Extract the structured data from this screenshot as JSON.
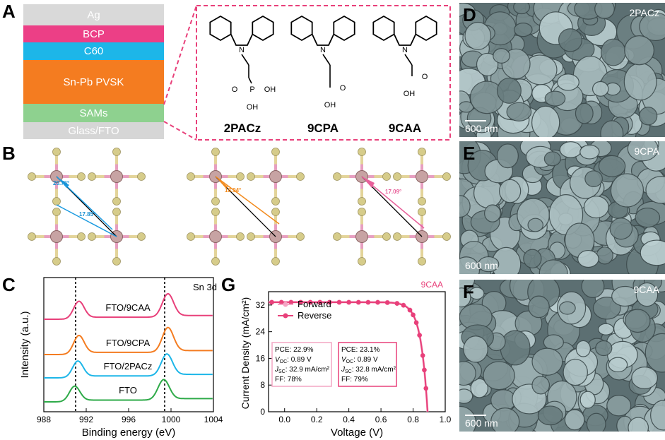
{
  "panel_labels": {
    "a": "A",
    "b": "B",
    "c": "C",
    "d": "D",
    "e": "E",
    "f": "F",
    "g": "G"
  },
  "stack": {
    "layers": [
      {
        "label": "Ag",
        "color": "#d9d9d9"
      },
      {
        "label": "BCP",
        "color": "#ec3f86"
      },
      {
        "label": "C60",
        "color": "#1db6e8"
      },
      {
        "label": "Sn-Pb PVSK",
        "color": "#f47c20"
      },
      {
        "label": "SAMs",
        "color": "#8ed18f"
      },
      {
        "label": "Glass/FTO",
        "color": "#d6d6d6"
      }
    ]
  },
  "molecules": {
    "names": [
      "2PACz",
      "9CPA",
      "9CAA"
    ],
    "atoms": {
      "N": "N",
      "P": "P",
      "O": "O",
      "OH": "OH"
    }
  },
  "angles": {
    "a1": "20.76°",
    "a2": "17.85°",
    "b1": "18.94°",
    "c1": "17.09°"
  },
  "sem": [
    {
      "label": "2PACz",
      "scale": "600 nm"
    },
    {
      "label": "9CPA",
      "scale": "600 nm"
    },
    {
      "label": "9CAA",
      "scale": "600 nm"
    }
  ],
  "chart_data": [
    {
      "type": "line",
      "xlabel": "Binding energy (eV)",
      "ylabel": "Intensity (a.u.)",
      "xlim": [
        988,
        1004
      ],
      "xticks": [
        988,
        992,
        996,
        1000,
        1004
      ],
      "annotation": "Sn 3d",
      "peak_markers": [
        991,
        999.4
      ],
      "series": [
        {
          "name": "FTO/9CAA",
          "color": "#e8407a",
          "peaks": [
            991.3,
            999.7
          ]
        },
        {
          "name": "FTO/9CPA",
          "color": "#f47c20",
          "peaks": [
            991.3,
            999.7
          ]
        },
        {
          "name": "FTO/2PACz",
          "color": "#1db6e8",
          "peaks": [
            991.2,
            999.6
          ]
        },
        {
          "name": "FTO",
          "color": "#2eaa48",
          "peaks": [
            990.9,
            999.3
          ]
        }
      ]
    },
    {
      "type": "line",
      "xlabel": "Voltage (V)",
      "ylabel": "Current Density (mA/cm²)",
      "xlim": [
        -0.1,
        1.0
      ],
      "ylim": [
        0,
        36
      ],
      "xticks": [
        0.0,
        0.2,
        0.4,
        0.6,
        0.8,
        1.0
      ],
      "xtick_labels": [
        "0.0",
        "0.2",
        "0.4",
        "0.6",
        "0.8",
        "1.0"
      ],
      "yticks": [
        0,
        8,
        16,
        24,
        32
      ],
      "title": "9CAA",
      "series": [
        {
          "name": "Forward",
          "color": "#f4a6c4",
          "jsc": 32.9,
          "voc": 0.89
        },
        {
          "name": "Reverse",
          "color": "#e8407a",
          "jsc": 32.8,
          "voc": 0.89
        }
      ],
      "boxes": [
        {
          "pce": "PCE: 22.9%",
          "voc": "V",
          "voc_sub": "OC",
          "voc_val": ": 0.89 V",
          "jsc": "J",
          "jsc_sub": "SC",
          "jsc_val": ": 32.9 mA/cm²",
          "ff": "FF: 78%"
        },
        {
          "pce": "PCE: 23.1%",
          "voc": "V",
          "voc_sub": "OC",
          "voc_val": ": 0.89 V",
          "jsc": "J",
          "jsc_sub": "SC",
          "jsc_val": ": 32.8 mA/cm²",
          "ff": "FF: 79%"
        }
      ]
    }
  ]
}
